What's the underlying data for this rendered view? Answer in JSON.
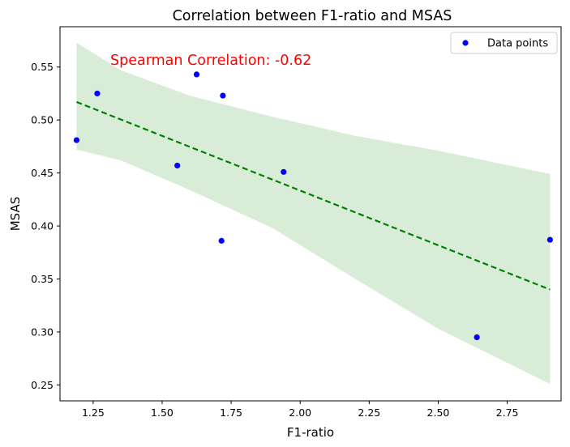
{
  "chart_data": {
    "type": "scatter",
    "title": "Correlation between F1-ratio and MSAS",
    "xlabel": "F1-ratio",
    "ylabel": "MSAS",
    "xlim": [
      1.13,
      2.945
    ],
    "ylim": [
      0.235,
      0.588
    ],
    "xticks": [
      "1.25",
      "1.50",
      "1.75",
      "2.00",
      "2.25",
      "2.50",
      "2.75"
    ],
    "xtick_values": [
      1.25,
      1.5,
      1.75,
      2.0,
      2.25,
      2.5,
      2.75
    ],
    "yticks": [
      "0.25",
      "0.30",
      "0.35",
      "0.40",
      "0.45",
      "0.50",
      "0.55"
    ],
    "ytick_values": [
      0.25,
      0.3,
      0.35,
      0.4,
      0.45,
      0.5,
      0.55
    ],
    "grid": false,
    "legend_position": "top-right",
    "series": [
      {
        "name": "Data points",
        "color": "#0000ff",
        "points": [
          {
            "x": 1.19,
            "y": 0.481
          },
          {
            "x": 1.265,
            "y": 0.525
          },
          {
            "x": 1.555,
            "y": 0.457
          },
          {
            "x": 1.625,
            "y": 0.543
          },
          {
            "x": 1.715,
            "y": 0.386
          },
          {
            "x": 1.72,
            "y": 0.523
          },
          {
            "x": 1.94,
            "y": 0.451
          },
          {
            "x": 2.64,
            "y": 0.295
          },
          {
            "x": 2.905,
            "y": 0.387
          }
        ]
      }
    ],
    "fit_line": {
      "style": "dashed",
      "color": "#008000",
      "x": [
        1.19,
        2.905
      ],
      "y": [
        0.517,
        0.34
      ]
    },
    "confidence_band": {
      "color": "#d8ecd8",
      "x": [
        1.19,
        1.35,
        1.6,
        1.9,
        2.2,
        2.5,
        2.905
      ],
      "upper": [
        0.573,
        0.547,
        0.523,
        0.503,
        0.485,
        0.471,
        0.449
      ],
      "lower": [
        0.472,
        0.462,
        0.434,
        0.398,
        0.35,
        0.303,
        0.251
      ]
    },
    "annotation": {
      "text": "Spearman Correlation: -0.62",
      "color": "#ff0000"
    }
  }
}
